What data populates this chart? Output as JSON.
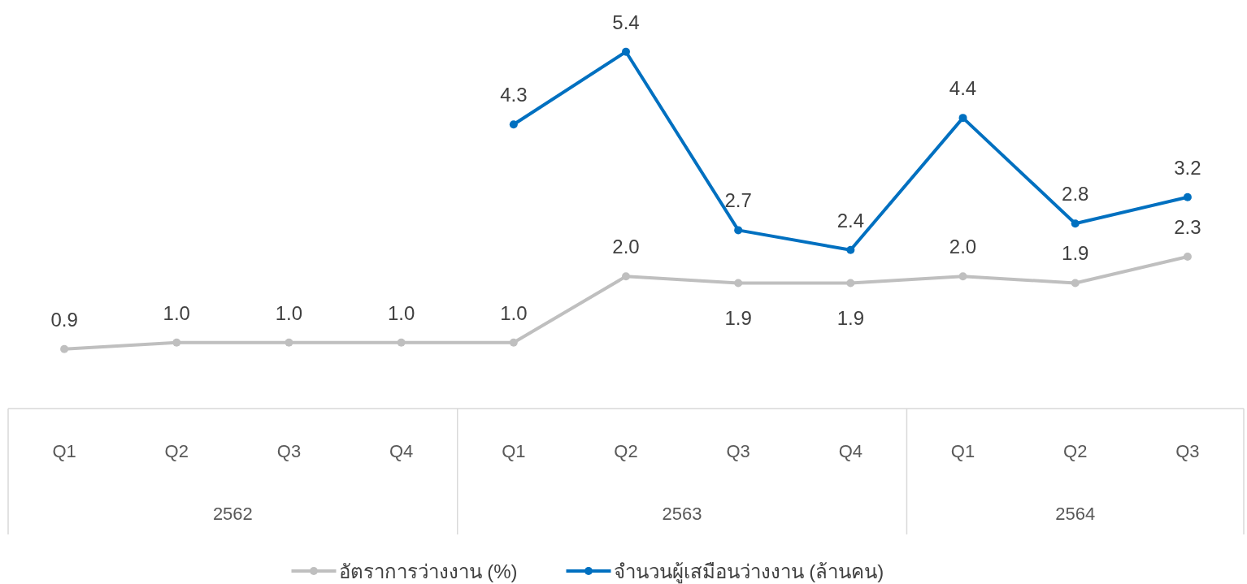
{
  "chart_data": {
    "type": "line",
    "categories": [
      "Q1",
      "Q2",
      "Q3",
      "Q4",
      "Q1",
      "Q2",
      "Q3",
      "Q4",
      "Q1",
      "Q2",
      "Q3"
    ],
    "annotations": [
      "2562",
      "2563",
      "2564"
    ],
    "series": [
      {
        "name": "อัตราการว่างงาน (%)",
        "color": "#bfbfbf",
        "values": [
          0.9,
          1.0,
          1.0,
          1.0,
          1.0,
          2.0,
          1.9,
          1.9,
          2.0,
          1.9,
          2.3
        ],
        "value_labels": [
          "0.9",
          "1.0",
          "1.0",
          "1.0",
          "1.0",
          "2.0",
          "1.9",
          "1.9",
          "2.0",
          "1.9",
          "2.3"
        ]
      },
      {
        "name": "จำนวนผู้เสมือนว่างงาน (ล้านคน)",
        "color": "#0070c0",
        "values": [
          null,
          null,
          null,
          null,
          4.3,
          5.4,
          2.7,
          2.4,
          4.4,
          2.8,
          3.2
        ],
        "value_labels": [
          null,
          null,
          null,
          null,
          "4.3",
          "5.4",
          "2.7",
          "2.4",
          "4.4",
          "2.8",
          "3.2"
        ]
      }
    ],
    "marker": "circle",
    "line_style": "solid",
    "legend": "bottom",
    "grid": false
  }
}
